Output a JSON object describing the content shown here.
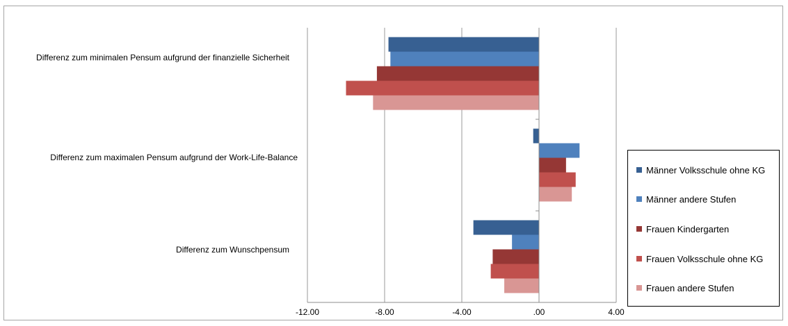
{
  "chart_data": {
    "type": "bar",
    "orientation": "horizontal",
    "categories": [
      "Differenz zum minimalen Pensum aufgrund der finanzielle Sicherheit",
      "Differenz zum maximalen Pensum aufgrund der Work-Life-Balance",
      "Differenz zum Wunschpensum"
    ],
    "series": [
      {
        "name": "Männer Volksschule ohne KG",
        "color": "#376092",
        "values": [
          -7.8,
          -0.3,
          -3.4
        ]
      },
      {
        "name": "Männer andere Stufen",
        "color": "#4f81bd",
        "values": [
          -7.7,
          2.1,
          -1.4
        ]
      },
      {
        "name": "Frauen Kindergarten",
        "color": "#953735",
        "values": [
          -8.4,
          1.4,
          -2.4
        ]
      },
      {
        "name": "Frauen Volksschule ohne KG",
        "color": "#c0504d",
        "values": [
          -10.0,
          1.9,
          -2.5
        ]
      },
      {
        "name": "Frauen andere Stufen",
        "color": "#d99694",
        "values": [
          -8.6,
          1.7,
          -1.8
        ]
      }
    ],
    "xlim": [
      -12,
      4
    ],
    "xticks": [
      -12,
      -8,
      -4,
      0,
      4
    ],
    "xtick_labels": [
      "-12.00",
      "-8.00",
      "-4.00",
      ".00",
      "4.00"
    ],
    "grid": true,
    "legend_position": "right"
  }
}
